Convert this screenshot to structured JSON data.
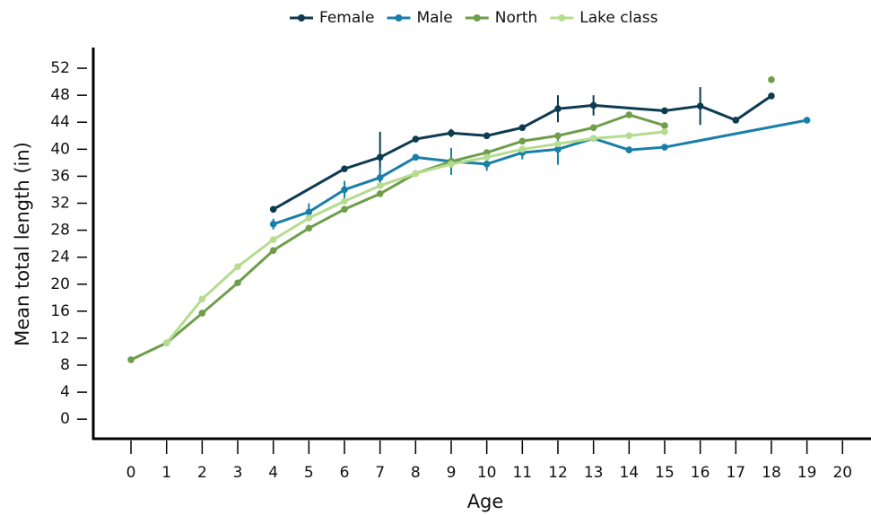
{
  "chart_data": {
    "type": "line",
    "x_label": "Age",
    "y_label": "Mean total length (in)",
    "xlim": [
      -1.06,
      20.8
    ],
    "ylim": [
      -2.9,
      54.8
    ],
    "xticks": [
      0,
      1,
      2,
      3,
      4,
      5,
      6,
      7,
      8,
      9,
      10,
      11,
      12,
      13,
      14,
      15,
      16,
      17,
      18,
      19,
      20
    ],
    "yticks": [
      0,
      4,
      8,
      12,
      16,
      20,
      24,
      28,
      32,
      36,
      40,
      44,
      48,
      52
    ],
    "legend": "top",
    "series": [
      {
        "name": "Female",
        "color": "#0d3b4f",
        "x": [
          4,
          6,
          7,
          8,
          9,
          10,
          11,
          12,
          13,
          15,
          16,
          17,
          18
        ],
        "values": [
          31.1,
          37.1,
          38.8,
          41.5,
          42.4,
          42,
          43.2,
          46,
          46.5,
          45.7,
          46.4,
          44.3,
          47.9
        ],
        "errors": [
          null,
          null,
          3.8,
          null,
          0.6,
          null,
          null,
          2,
          1.5,
          null,
          2.8,
          null,
          null
        ]
      },
      {
        "name": "Male",
        "color": "#1a7fa8",
        "x": [
          4,
          5,
          6,
          7,
          8,
          9,
          10,
          11,
          12,
          13,
          14,
          15,
          19
        ],
        "values": [
          28.9,
          30.7,
          34,
          35.8,
          38.8,
          38.2,
          37.8,
          39.5,
          40,
          41.6,
          39.9,
          40.3,
          44.3
        ],
        "errors": [
          0.8,
          1.3,
          1.3,
          1.5,
          null,
          2,
          1,
          1,
          2.3,
          null,
          0.5,
          null,
          null
        ]
      },
      {
        "name": "North",
        "color": "#6e9e4a",
        "x": [
          0,
          1,
          2,
          3,
          4,
          5,
          6,
          7,
          8,
          9,
          10,
          11,
          12,
          13,
          14,
          15,
          16,
          17,
          18
        ],
        "values": [
          8.8,
          11.3,
          15.7,
          20.2,
          25,
          28.3,
          31.1,
          33.4,
          36.4,
          38.2,
          39.5,
          41.2,
          42,
          43.2,
          45.1,
          43.5,
          null,
          null,
          50.3
        ]
      },
      {
        "name": "Lake class",
        "color": "#b5dc8f",
        "x": [
          1,
          2,
          3,
          4,
          5,
          6,
          7,
          8,
          9,
          10,
          11,
          12,
          13,
          14,
          15
        ],
        "values": [
          11.3,
          17.8,
          22.6,
          26.6,
          29.8,
          32.3,
          34.6,
          36.4,
          37.8,
          38.8,
          40,
          40.8,
          41.6,
          42,
          42.6
        ]
      }
    ]
  }
}
